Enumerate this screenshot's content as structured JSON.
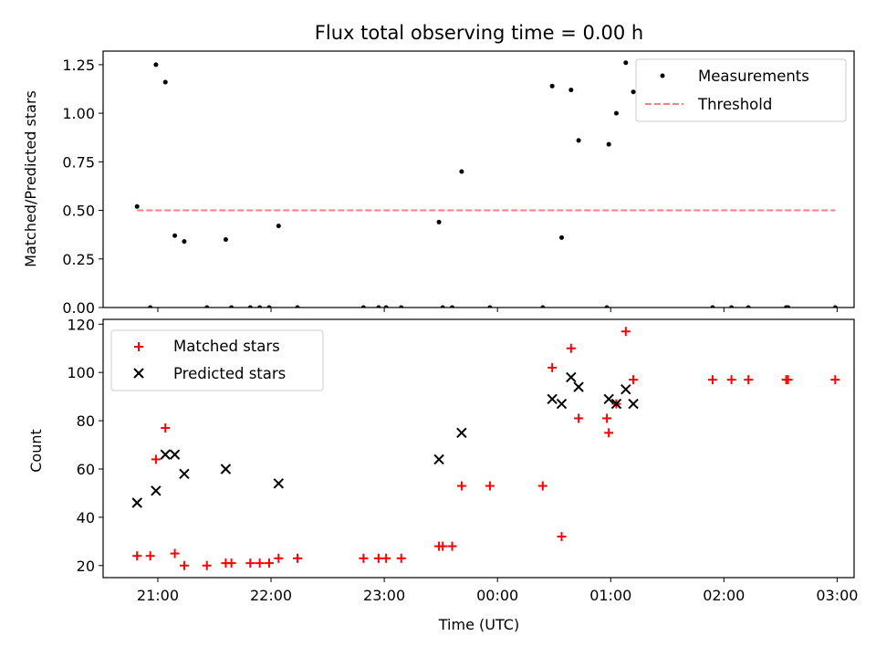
{
  "chart_data": [
    {
      "type": "scatter",
      "title": "Flux total observing time = 0.00 h",
      "xlabel": "",
      "ylabel": "Matched/Predicted stars",
      "xlim": [
        "20:31",
        "03:09"
      ],
      "ylim": [
        0,
        1.32
      ],
      "yticks": [
        "0.00",
        "0.25",
        "0.50",
        "0.75",
        "1.00",
        "1.25"
      ],
      "ytick_values": [
        0,
        0.25,
        0.5,
        0.75,
        1.0,
        1.25
      ],
      "xtick_values": [
        "21:00",
        "22:00",
        "23:00",
        "00:00",
        "01:00",
        "02:00",
        "03:00"
      ],
      "grid": false,
      "legend_position": "top-right",
      "series": [
        {
          "name": "Measurements",
          "kind": "points",
          "color": "#000000",
          "points": [
            [
              "20:49",
              0.52
            ],
            [
              "20:56",
              0.0
            ],
            [
              "20:59",
              1.25
            ],
            [
              "21:04",
              1.16
            ],
            [
              "21:09",
              0.37
            ],
            [
              "21:14",
              0.34
            ],
            [
              "21:26",
              0.0
            ],
            [
              "21:36",
              0.35
            ],
            [
              "21:39",
              0.0
            ],
            [
              "21:49",
              0.0
            ],
            [
              "21:54",
              0.0
            ],
            [
              "21:59",
              0.0
            ],
            [
              "22:04",
              0.42
            ],
            [
              "22:14",
              0.0
            ],
            [
              "22:49",
              0.0
            ],
            [
              "22:57",
              0.0
            ],
            [
              "23:01",
              0.0
            ],
            [
              "23:09",
              0.0
            ],
            [
              "23:29",
              0.44
            ],
            [
              "23:31",
              0.0
            ],
            [
              "23:36",
              0.0
            ],
            [
              "23:41",
              0.7
            ],
            [
              "23:56",
              0.0
            ],
            [
              "00:24",
              0.0
            ],
            [
              "00:29",
              1.14
            ],
            [
              "00:34",
              0.36
            ],
            [
              "00:39",
              1.12
            ],
            [
              "00:43",
              0.86
            ],
            [
              "00:58",
              0.0
            ],
            [
              "00:59",
              0.84
            ],
            [
              "01:03",
              1.0
            ],
            [
              "01:08",
              1.26
            ],
            [
              "01:12",
              1.11
            ],
            [
              "01:54",
              0.0
            ],
            [
              "02:04",
              0.0
            ],
            [
              "02:13",
              0.0
            ],
            [
              "02:33",
              0.0
            ],
            [
              "02:34",
              0.0
            ],
            [
              "02:59",
              0.0
            ]
          ]
        },
        {
          "name": "Threshold",
          "kind": "dashed-line",
          "color": "#ff7f7f",
          "points": [
            [
              "20:49",
              0.5
            ],
            [
              "02:59",
              0.5
            ]
          ]
        }
      ]
    },
    {
      "type": "scatter",
      "title": "",
      "xlabel": "Time (UTC)",
      "ylabel": "Count",
      "xlim": [
        "20:31",
        "03:09"
      ],
      "ylim": [
        15,
        122
      ],
      "yticks": [
        "20",
        "40",
        "60",
        "80",
        "100",
        "120"
      ],
      "ytick_values": [
        20,
        40,
        60,
        80,
        100,
        120
      ],
      "xticks": [
        "21:00",
        "22:00",
        "23:00",
        "00:00",
        "01:00",
        "02:00",
        "03:00"
      ],
      "grid": false,
      "legend_position": "top-left",
      "series": [
        {
          "name": "Matched stars",
          "marker": "plus",
          "color": "#ff0000",
          "points": [
            [
              "20:49",
              24
            ],
            [
              "20:56",
              24
            ],
            [
              "20:59",
              64
            ],
            [
              "21:04",
              77
            ],
            [
              "21:09",
              25
            ],
            [
              "21:14",
              20
            ],
            [
              "21:26",
              20
            ],
            [
              "21:36",
              21
            ],
            [
              "21:39",
              21
            ],
            [
              "21:49",
              21
            ],
            [
              "21:54",
              21
            ],
            [
              "21:59",
              21
            ],
            [
              "22:04",
              23
            ],
            [
              "22:14",
              23
            ],
            [
              "22:49",
              23
            ],
            [
              "22:57",
              23
            ],
            [
              "23:01",
              23
            ],
            [
              "23:09",
              23
            ],
            [
              "23:29",
              28
            ],
            [
              "23:31",
              28
            ],
            [
              "23:36",
              28
            ],
            [
              "23:41",
              53
            ],
            [
              "23:56",
              53
            ],
            [
              "00:24",
              53
            ],
            [
              "00:29",
              102
            ],
            [
              "00:34",
              32
            ],
            [
              "00:39",
              110
            ],
            [
              "00:43",
              81
            ],
            [
              "00:58",
              81
            ],
            [
              "00:59",
              75
            ],
            [
              "01:03",
              87
            ],
            [
              "01:08",
              117
            ],
            [
              "01:12",
              97
            ],
            [
              "01:54",
              97
            ],
            [
              "02:04",
              97
            ],
            [
              "02:13",
              97
            ],
            [
              "02:33",
              97
            ],
            [
              "02:34",
              97
            ],
            [
              "02:59",
              97
            ]
          ]
        },
        {
          "name": "Predicted stars",
          "marker": "x",
          "color": "#000000",
          "points": [
            [
              "20:49",
              46
            ],
            [
              "20:59",
              51
            ],
            [
              "21:04",
              66
            ],
            [
              "21:09",
              66
            ],
            [
              "21:14",
              58
            ],
            [
              "21:36",
              60
            ],
            [
              "22:04",
              54
            ],
            [
              "23:29",
              64
            ],
            [
              "23:41",
              75
            ],
            [
              "00:29",
              89
            ],
            [
              "00:34",
              87
            ],
            [
              "00:39",
              98
            ],
            [
              "00:43",
              94
            ],
            [
              "00:59",
              89
            ],
            [
              "01:03",
              87
            ],
            [
              "01:08",
              93
            ],
            [
              "01:12",
              87
            ]
          ]
        }
      ]
    }
  ]
}
